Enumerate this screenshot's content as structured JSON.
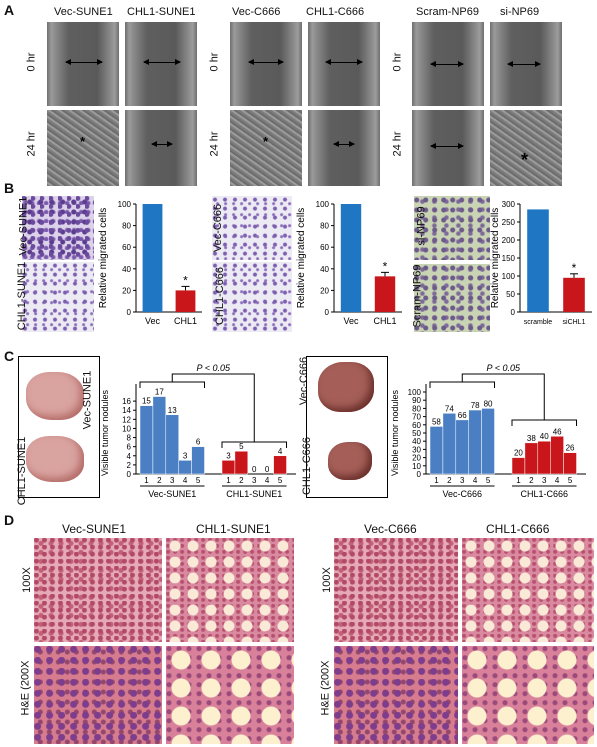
{
  "panels": {
    "A": {
      "letter": "A",
      "columns": [
        "Vec-SUNE1",
        "CHL1-SUNE1",
        "Vec-C666",
        "CHL1-C666",
        "Scram-NP69",
        "si-NP69"
      ],
      "rows": [
        "0 hr",
        "24 hr"
      ],
      "marks": [
        "*",
        "*",
        "*"
      ]
    },
    "B": {
      "letter": "B",
      "image_labels": [
        "Vec-SUNE1",
        "CHL1-SUNE1",
        "Vec-C666",
        "CHL1-C666",
        "si-NP69",
        "Scram-NP69"
      ],
      "ylabel": "Relative migrated cells",
      "star": "*"
    },
    "C": {
      "letter": "C",
      "image_labels": [
        "Vec-SUNE1",
        "CHL1-SUNE1",
        "Vec-C666",
        "CHL1-C666"
      ],
      "ylabel": "Visible tumor nodules",
      "pval": "P < 0.05"
    },
    "D": {
      "letter": "D",
      "columns": [
        "Vec-SUNE1",
        "CHL1-SUNE1",
        "Vec-C666",
        "CHL1-C666"
      ],
      "rows": [
        "100X",
        "H&E (200X"
      ]
    }
  },
  "chart_data": [
    {
      "type": "bar",
      "panel": "B1",
      "categories": [
        "Vec",
        "CHL1"
      ],
      "values": [
        100,
        20
      ],
      "ylim": [
        0,
        100
      ],
      "yticks": [
        0,
        20,
        40,
        60,
        80,
        100
      ],
      "colors": [
        "#1f77c4",
        "#c8161b"
      ],
      "ylabel": "Relative migrated cells"
    },
    {
      "type": "bar",
      "panel": "B2",
      "categories": [
        "Vec",
        "CHL1"
      ],
      "values": [
        100,
        33
      ],
      "ylim": [
        0,
        100
      ],
      "yticks": [
        0,
        20,
        40,
        60,
        80,
        100
      ],
      "colors": [
        "#1f77c4",
        "#c8161b"
      ],
      "ylabel": "Relative migrated cells"
    },
    {
      "type": "bar",
      "panel": "B3",
      "categories": [
        "scramble",
        "siCHL1"
      ],
      "values": [
        285,
        95
      ],
      "ylim": [
        0,
        300
      ],
      "yticks": [
        0,
        50,
        100,
        150,
        200,
        250,
        300
      ],
      "colors": [
        "#1f77c4",
        "#c8161b"
      ],
      "ylabel": "Relative migrated cells"
    },
    {
      "type": "bar",
      "panel": "C1",
      "groups": [
        {
          "name": "Vec-SUNE1",
          "x": [
            "1",
            "2",
            "3",
            "4",
            "5"
          ],
          "values": [
            15,
            17,
            13,
            3,
            6
          ],
          "color": "#4a7fc4"
        },
        {
          "name": "CHL1-SUNE1",
          "x": [
            "1",
            "2",
            "3",
            "4",
            "5"
          ],
          "values": [
            3,
            5,
            0,
            0,
            4
          ],
          "color": "#c8161b"
        }
      ],
      "ylim": [
        0,
        18
      ],
      "yticks": [
        0,
        2,
        4,
        6,
        8,
        10,
        12,
        14,
        16
      ],
      "ylabel": "Visible tumor nodules",
      "annotation": "P < 0.05"
    },
    {
      "type": "bar",
      "panel": "C2",
      "groups": [
        {
          "name": "Vec-C666",
          "x": [
            "1",
            "2",
            "3",
            "4",
            "5"
          ],
          "values": [
            58,
            74,
            66,
            78,
            80
          ],
          "color": "#4a7fc4"
        },
        {
          "name": "CHL1-C666",
          "x": [
            "1",
            "2",
            "3",
            "4",
            "5"
          ],
          "values": [
            20,
            38,
            40,
            46,
            26
          ],
          "color": "#c8161b"
        }
      ],
      "ylim": [
        0,
        100
      ],
      "yticks": [
        0,
        10,
        20,
        30,
        40,
        50,
        60,
        70,
        80,
        90,
        100
      ],
      "ylabel": "Visible tumor nodules",
      "annotation": "P < 0.05"
    }
  ]
}
